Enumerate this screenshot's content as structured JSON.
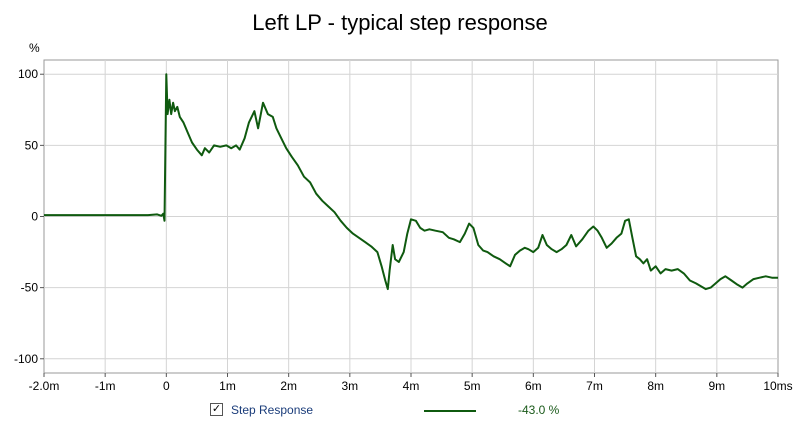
{
  "chart_data": {
    "type": "line",
    "title": "Left LP - typical step response",
    "xlabel": "",
    "ylabel": "%",
    "xlim": [
      -2.0,
      10.0
    ],
    "ylim": [
      -110,
      110
    ],
    "x_ticks": [
      -2,
      -1,
      0,
      1,
      2,
      3,
      4,
      5,
      6,
      7,
      8,
      9,
      10
    ],
    "x_tick_labels": [
      "-2.0m",
      "-1m",
      "0",
      "1m",
      "2m",
      "3m",
      "4m",
      "5m",
      "6m",
      "7m",
      "8m",
      "9m",
      "10ms"
    ],
    "y_ticks": [
      100,
      50,
      0,
      -50,
      -100
    ],
    "y_tick_labels": [
      "100",
      "50",
      "0",
      "-50",
      "-100"
    ],
    "grid": true,
    "series": [
      {
        "name": "Step Response",
        "color": "#0f5a0f",
        "legend_value": "-43.0 %",
        "points": [
          [
            -2.0,
            1
          ],
          [
            -1.0,
            1
          ],
          [
            -0.3,
            1
          ],
          [
            -0.15,
            1.5
          ],
          [
            -0.08,
            0.5
          ],
          [
            -0.05,
            2
          ],
          [
            -0.03,
            -3
          ],
          [
            0.0,
            100
          ],
          [
            0.02,
            72
          ],
          [
            0.05,
            82
          ],
          [
            0.08,
            72
          ],
          [
            0.11,
            80
          ],
          [
            0.14,
            74
          ],
          [
            0.18,
            77
          ],
          [
            0.22,
            70
          ],
          [
            0.28,
            66
          ],
          [
            0.34,
            60
          ],
          [
            0.42,
            52
          ],
          [
            0.5,
            47
          ],
          [
            0.58,
            43
          ],
          [
            0.63,
            48
          ],
          [
            0.7,
            45
          ],
          [
            0.78,
            50
          ],
          [
            0.88,
            49
          ],
          [
            0.98,
            50
          ],
          [
            1.06,
            48
          ],
          [
            1.14,
            50
          ],
          [
            1.2,
            47
          ],
          [
            1.28,
            55
          ],
          [
            1.35,
            66
          ],
          [
            1.44,
            74
          ],
          [
            1.5,
            62
          ],
          [
            1.58,
            80
          ],
          [
            1.66,
            72
          ],
          [
            1.74,
            70
          ],
          [
            1.8,
            62
          ],
          [
            1.88,
            55
          ],
          [
            1.96,
            48
          ],
          [
            2.05,
            42
          ],
          [
            2.15,
            36
          ],
          [
            2.25,
            28
          ],
          [
            2.35,
            24
          ],
          [
            2.45,
            16
          ],
          [
            2.55,
            11
          ],
          [
            2.65,
            7
          ],
          [
            2.75,
            3
          ],
          [
            2.85,
            -3
          ],
          [
            2.95,
            -8
          ],
          [
            3.05,
            -12
          ],
          [
            3.15,
            -15
          ],
          [
            3.25,
            -18
          ],
          [
            3.35,
            -21
          ],
          [
            3.45,
            -25
          ],
          [
            3.52,
            -35
          ],
          [
            3.58,
            -45
          ],
          [
            3.62,
            -51
          ],
          [
            3.65,
            -38
          ],
          [
            3.7,
            -20
          ],
          [
            3.74,
            -30
          ],
          [
            3.8,
            -32
          ],
          [
            3.88,
            -25
          ],
          [
            3.94,
            -12
          ],
          [
            4.0,
            -2
          ],
          [
            4.08,
            -3
          ],
          [
            4.15,
            -8
          ],
          [
            4.22,
            -10
          ],
          [
            4.3,
            -9
          ],
          [
            4.4,
            -10
          ],
          [
            4.52,
            -11
          ],
          [
            4.62,
            -15
          ],
          [
            4.7,
            -16
          ],
          [
            4.8,
            -18
          ],
          [
            4.88,
            -12
          ],
          [
            4.95,
            -5
          ],
          [
            5.02,
            -8
          ],
          [
            5.1,
            -20
          ],
          [
            5.18,
            -24
          ],
          [
            5.25,
            -25
          ],
          [
            5.35,
            -28
          ],
          [
            5.45,
            -30
          ],
          [
            5.55,
            -33
          ],
          [
            5.62,
            -35
          ],
          [
            5.7,
            -27
          ],
          [
            5.78,
            -24
          ],
          [
            5.86,
            -22
          ],
          [
            5.92,
            -23
          ],
          [
            6.0,
            -25
          ],
          [
            6.08,
            -22
          ],
          [
            6.15,
            -13
          ],
          [
            6.22,
            -20
          ],
          [
            6.3,
            -23
          ],
          [
            6.38,
            -25
          ],
          [
            6.46,
            -23
          ],
          [
            6.54,
            -20
          ],
          [
            6.62,
            -13
          ],
          [
            6.7,
            -21
          ],
          [
            6.8,
            -16
          ],
          [
            6.9,
            -10
          ],
          [
            6.98,
            -7
          ],
          [
            7.05,
            -10
          ],
          [
            7.12,
            -15
          ],
          [
            7.2,
            -22
          ],
          [
            7.28,
            -19
          ],
          [
            7.36,
            -15
          ],
          [
            7.44,
            -12
          ],
          [
            7.5,
            -3
          ],
          [
            7.56,
            -2
          ],
          [
            7.62,
            -15
          ],
          [
            7.68,
            -28
          ],
          [
            7.74,
            -30
          ],
          [
            7.8,
            -33
          ],
          [
            7.86,
            -30
          ],
          [
            7.92,
            -38
          ],
          [
            8.0,
            -35
          ],
          [
            8.08,
            -40
          ],
          [
            8.16,
            -37
          ],
          [
            8.26,
            -38
          ],
          [
            8.36,
            -37
          ],
          [
            8.46,
            -40
          ],
          [
            8.56,
            -45
          ],
          [
            8.66,
            -47
          ],
          [
            8.74,
            -49
          ],
          [
            8.82,
            -51
          ],
          [
            8.9,
            -50
          ],
          [
            8.98,
            -47
          ],
          [
            9.06,
            -44
          ],
          [
            9.14,
            -42
          ],
          [
            9.24,
            -45
          ],
          [
            9.34,
            -48
          ],
          [
            9.42,
            -50
          ],
          [
            9.5,
            -47
          ],
          [
            9.6,
            -44
          ],
          [
            9.7,
            -43
          ],
          [
            9.8,
            -42
          ],
          [
            9.9,
            -43
          ],
          [
            10.0,
            -43
          ]
        ]
      }
    ]
  }
}
